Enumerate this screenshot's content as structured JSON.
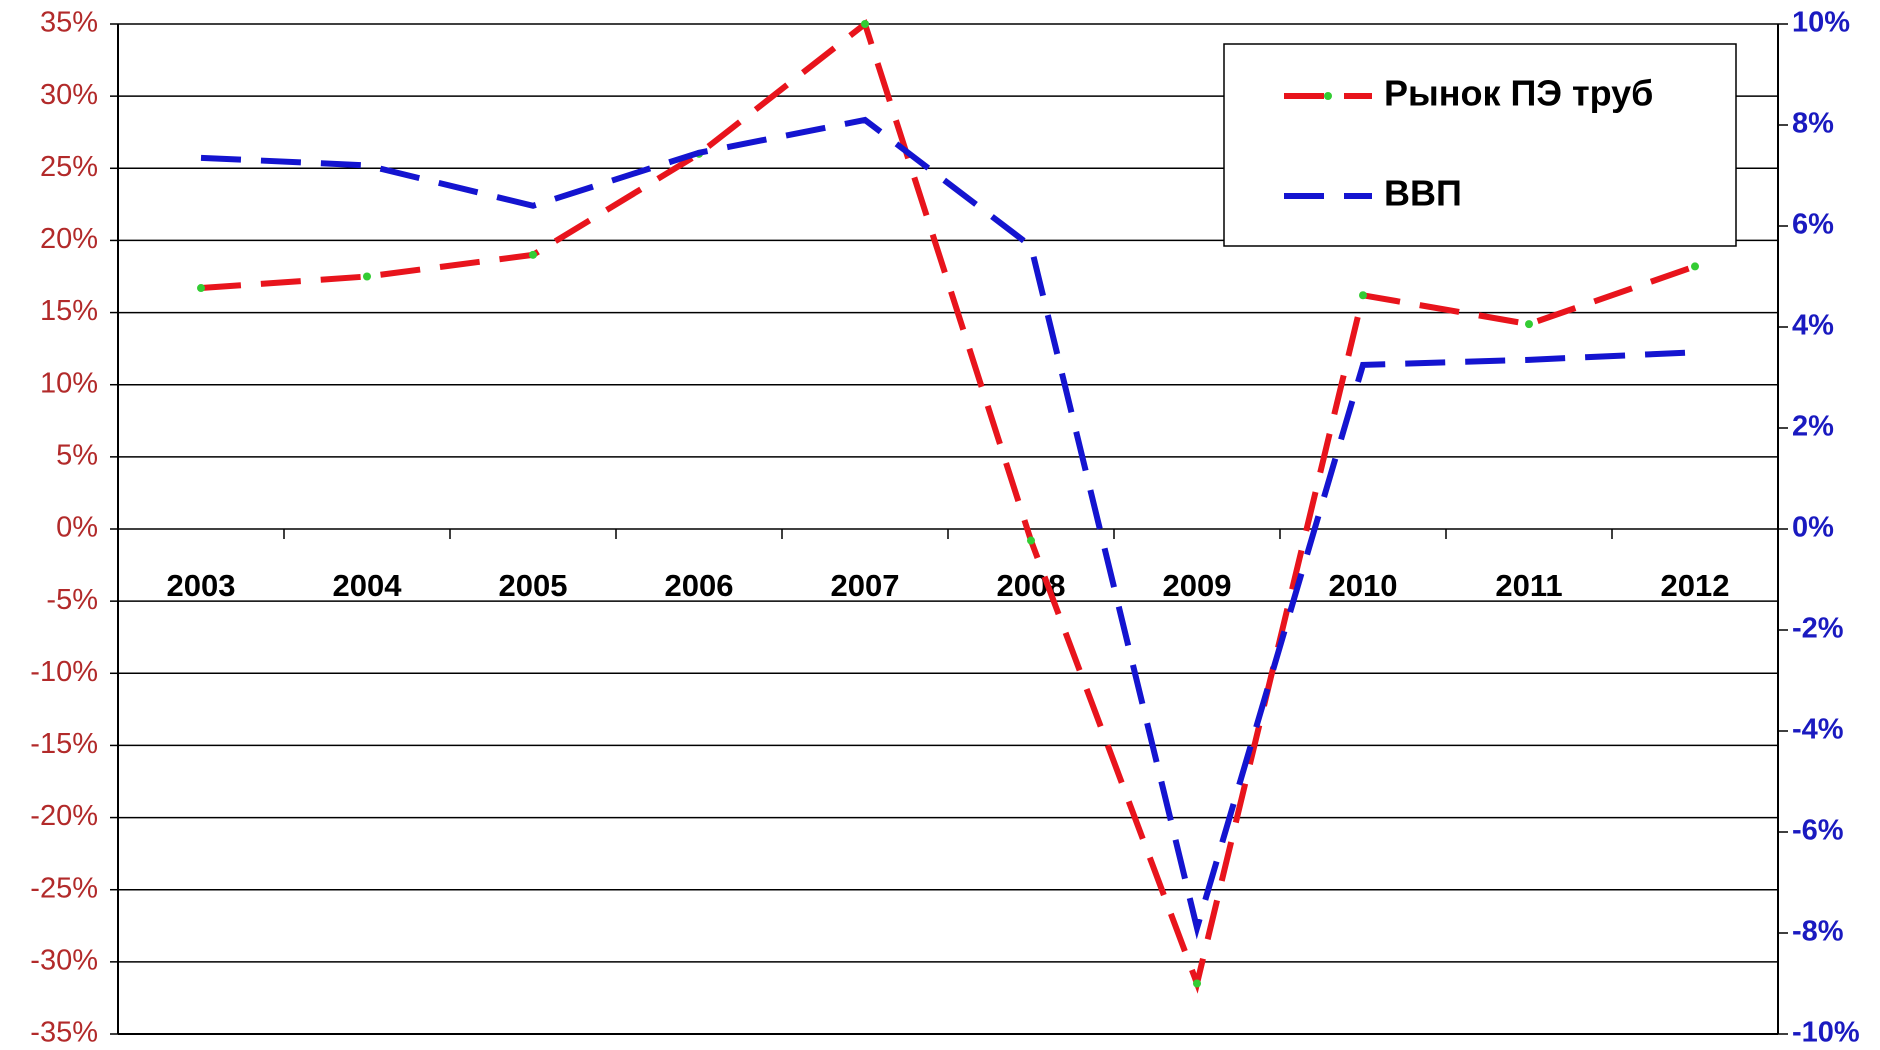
{
  "chart_data": {
    "type": "line",
    "categories": [
      "2003",
      "2004",
      "2005",
      "2006",
      "2007",
      "2008",
      "2009",
      "2010",
      "2011",
      "2012"
    ],
    "series": [
      {
        "name": "Рынок ПЭ труб",
        "color": "#e8141c",
        "marker_color": "#33cc33",
        "values": [
          16.7,
          17.5,
          19,
          26,
          35,
          -0.8,
          -31.5,
          16.2,
          14.2,
          18.2
        ]
      },
      {
        "name": "ВВП",
        "color": "#1414d0",
        "axis": "y2",
        "values": [
          7.35,
          7.2,
          6.4,
          7.45,
          8.1,
          5.6,
          -7.9,
          3.25,
          3.35,
          3.5
        ]
      }
    ],
    "ylim": [
      -35,
      35
    ],
    "yticks": [
      {
        "value": -35,
        "label": "-35%"
      },
      {
        "value": -30,
        "label": "-30%"
      },
      {
        "value": -25,
        "label": "-25%"
      },
      {
        "value": -20,
        "label": "-20%"
      },
      {
        "value": -15,
        "label": "-15%"
      },
      {
        "value": -10,
        "label": "-10%"
      },
      {
        "value": -5,
        "label": "-5%"
      },
      {
        "value": 0,
        "label": "0%"
      },
      {
        "value": 5,
        "label": "5%"
      },
      {
        "value": 10,
        "label": "10%"
      },
      {
        "value": 15,
        "label": "15%"
      },
      {
        "value": 20,
        "label": "20%"
      },
      {
        "value": 25,
        "label": "25%"
      },
      {
        "value": 30,
        "label": "30%"
      },
      {
        "value": 35,
        "label": "35%"
      }
    ],
    "y2lim": [
      -10,
      10
    ],
    "y2ticks": [
      {
        "value": -10,
        "label": "-10%"
      },
      {
        "value": -8,
        "label": "-8%"
      },
      {
        "value": -6,
        "label": "-6%"
      },
      {
        "value": -4,
        "label": "-4%"
      },
      {
        "value": -2,
        "label": "-2%"
      },
      {
        "value": 0,
        "label": "0%"
      },
      {
        "value": 2,
        "label": "2%"
      },
      {
        "value": 4,
        "label": "4%"
      },
      {
        "value": 6,
        "label": "6%"
      },
      {
        "value": 8,
        "label": "8%"
      },
      {
        "value": 10,
        "label": "10%"
      }
    ],
    "grid": true,
    "legend": "upper right"
  }
}
